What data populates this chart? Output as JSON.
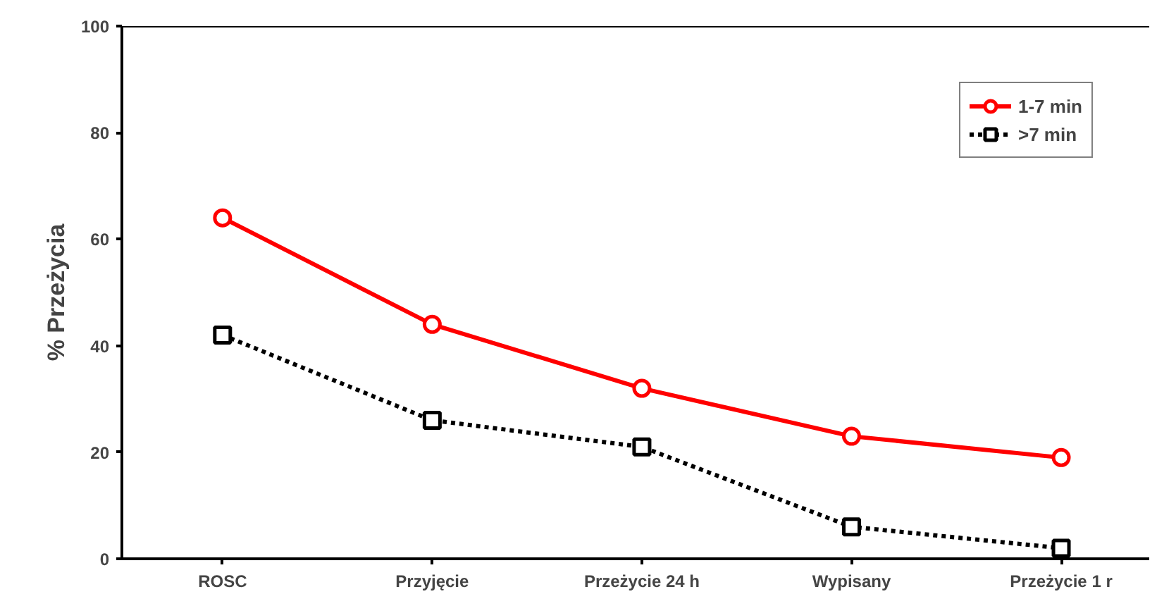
{
  "chart_data": {
    "type": "line",
    "ylabel": "% Przeżycia",
    "categories": [
      "ROSC",
      "Przyjęcie",
      "Przeżycie 24 h",
      "Wypisany",
      "Przeżycie 1 r"
    ],
    "ylim": [
      0,
      100
    ],
    "yticks": [
      0,
      20,
      40,
      60,
      80,
      100
    ],
    "grid": false,
    "legend": "top right",
    "series": [
      {
        "name": "1-7 min",
        "color": "#ff0000",
        "values": [
          64,
          44,
          32,
          23,
          19
        ],
        "marker": "circle",
        "line_style": "solid"
      },
      {
        "name": ">7 min",
        "color": "#000000",
        "values": [
          42,
          26,
          21,
          6,
          2
        ],
        "marker": "square",
        "line_style": "dotted"
      }
    ]
  }
}
